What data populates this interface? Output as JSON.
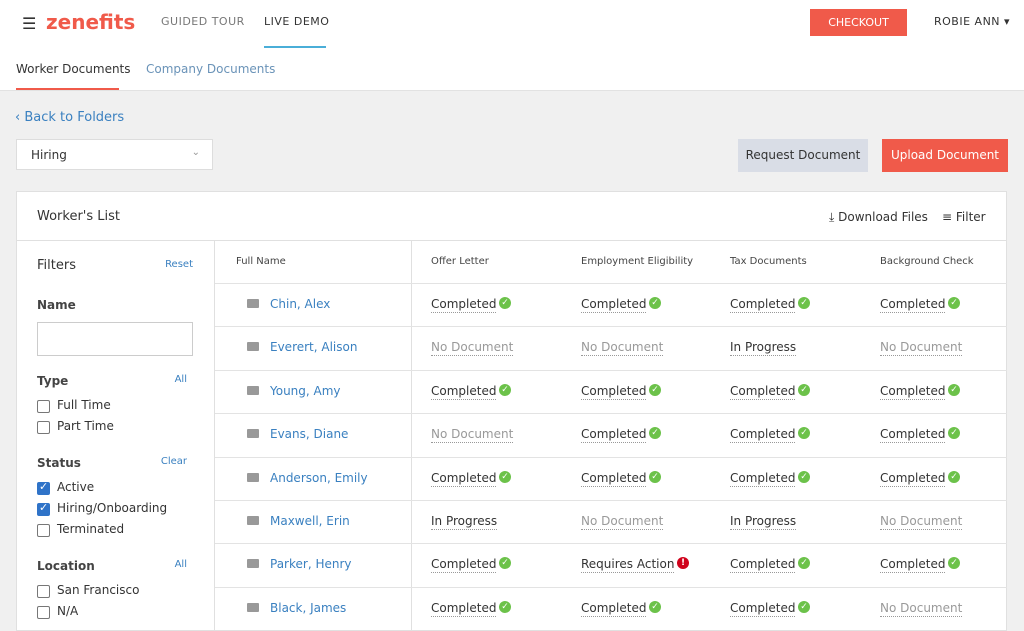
{
  "header": {
    "logo": "zenefits",
    "nav": [
      "GUIDED TOUR",
      "LIVE DEMO"
    ],
    "checkout": "CHECKOUT",
    "user": "ROBIE ANN"
  },
  "tabs": [
    "Worker Documents",
    "Company Documents"
  ],
  "back_link": "Back to Folders",
  "folder_select": "Hiring",
  "buttons": [
    "Request Document",
    "Upload Document"
  ],
  "panel": {
    "title": "Worker's List",
    "actions": [
      "Download Files",
      "Filter"
    ]
  },
  "filters": {
    "title": "Filters",
    "reset": "Reset",
    "name_label": "Name",
    "groups": [
      {
        "label": "Type",
        "action": "All",
        "options": [
          {
            "label": "Full Time",
            "checked": false
          },
          {
            "label": "Part Time",
            "checked": false
          }
        ]
      },
      {
        "label": "Status",
        "action": "Clear",
        "options": [
          {
            "label": "Active",
            "checked": true
          },
          {
            "label": "Hiring/Onboarding",
            "checked": true
          },
          {
            "label": "Terminated",
            "checked": false
          }
        ]
      },
      {
        "label": "Location",
        "action": "All",
        "options": [
          {
            "label": "San Francisco",
            "checked": false
          },
          {
            "label": "N/A",
            "checked": false
          }
        ]
      }
    ]
  },
  "table": {
    "columns": [
      "Full Name",
      "Offer Letter",
      "Employment Eligibility",
      "Tax Documents",
      "Background Check"
    ],
    "rows": [
      {
        "name": "Chin, Alex",
        "cells": [
          {
            "text": "Completed",
            "style": "done"
          },
          {
            "text": "Completed",
            "style": "done"
          },
          {
            "text": "Completed",
            "style": "done"
          },
          {
            "text": "Completed",
            "style": "done"
          }
        ]
      },
      {
        "name": "Everert, Alison",
        "cells": [
          {
            "text": "No Document",
            "style": "missing"
          },
          {
            "text": "No Document",
            "style": "missing"
          },
          {
            "text": "In Progress",
            "style": "progress"
          },
          {
            "text": "No Document",
            "style": "missing"
          }
        ]
      },
      {
        "name": "Young, Amy",
        "cells": [
          {
            "text": "Completed",
            "style": "done"
          },
          {
            "text": "Completed",
            "style": "done"
          },
          {
            "text": "Completed",
            "style": "done"
          },
          {
            "text": "Completed",
            "style": "done"
          }
        ]
      },
      {
        "name": "Evans, Diane",
        "cells": [
          {
            "text": "No Document",
            "style": "missing"
          },
          {
            "text": "Completed",
            "style": "done"
          },
          {
            "text": "Completed",
            "style": "done"
          },
          {
            "text": "Completed",
            "style": "done"
          }
        ]
      },
      {
        "name": "Anderson, Emily",
        "cells": [
          {
            "text": "Completed",
            "style": "done"
          },
          {
            "text": "Completed",
            "style": "done"
          },
          {
            "text": "Completed",
            "style": "done"
          },
          {
            "text": "Completed",
            "style": "done"
          }
        ]
      },
      {
        "name": "Maxwell, Erin",
        "cells": [
          {
            "text": "In Progress",
            "style": "progress"
          },
          {
            "text": "No Document",
            "style": "missing"
          },
          {
            "text": "In Progress",
            "style": "progress"
          },
          {
            "text": "No Document",
            "style": "missing"
          }
        ]
      },
      {
        "name": "Parker, Henry",
        "cells": [
          {
            "text": "Completed",
            "style": "done"
          },
          {
            "text": "Requires Action",
            "style": "action"
          },
          {
            "text": "Completed",
            "style": "done"
          },
          {
            "text": "Completed",
            "style": "done"
          }
        ]
      },
      {
        "name": "Black, James",
        "cells": [
          {
            "text": "Completed",
            "style": "done"
          },
          {
            "text": "Completed",
            "style": "done"
          },
          {
            "text": "Completed",
            "style": "done"
          },
          {
            "text": "No Document",
            "style": "missing"
          }
        ]
      }
    ]
  }
}
